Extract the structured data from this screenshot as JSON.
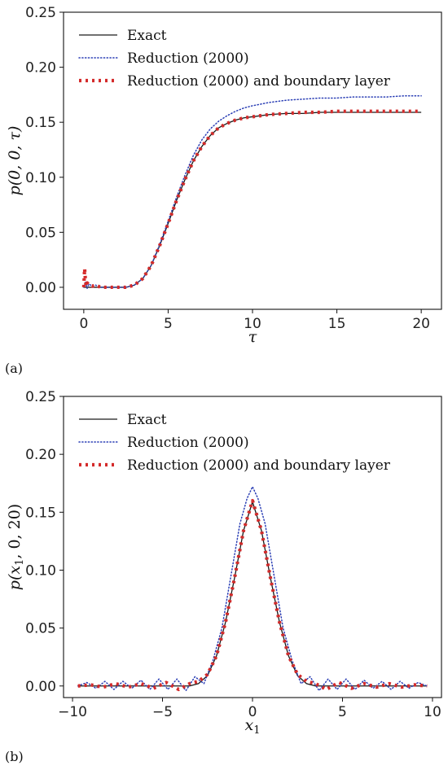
{
  "colors": {
    "exact": "#1a1a1a",
    "reduction": "#2b3fb5",
    "boundary": "#d42a2a"
  },
  "chart_data": [
    {
      "type": "line",
      "panel_label": "(a)",
      "xlabel": "τ",
      "ylabel": "p(0, 0, τ)",
      "xlim": [
        -1.2,
        21.2
      ],
      "ylim": [
        -0.02,
        0.25
      ],
      "xticks": [
        "0",
        "5",
        "10",
        "15",
        "20"
      ],
      "xtick_values": [
        0,
        5,
        10,
        15,
        20
      ],
      "yticks": [
        "0.00",
        "0.05",
        "0.10",
        "0.15",
        "0.20",
        "0.25"
      ],
      "ytick_values": [
        0.0,
        0.05,
        0.1,
        0.15,
        0.2,
        0.25
      ],
      "legend_position": "top-left",
      "series": [
        {
          "name": "Exact",
          "style": "solid",
          "x": [
            0,
            0.5,
            1,
            1.5,
            2,
            2.5,
            3,
            3.5,
            4,
            4.5,
            5,
            5.5,
            6,
            6.5,
            7,
            7.5,
            8,
            8.5,
            9,
            9.5,
            10,
            11,
            12,
            13,
            14,
            15,
            16,
            17,
            18,
            19,
            20
          ],
          "y": [
            0.0,
            0.0,
            0.0,
            0.0,
            0.0,
            0.0,
            0.002,
            0.008,
            0.02,
            0.038,
            0.058,
            0.079,
            0.098,
            0.115,
            0.128,
            0.138,
            0.145,
            0.149,
            0.152,
            0.154,
            0.155,
            0.157,
            0.158,
            0.158,
            0.159,
            0.159,
            0.159,
            0.159,
            0.159,
            0.159,
            0.159
          ]
        },
        {
          "name": "Reduction (2000)",
          "style": "dotted",
          "x": [
            0,
            0.1,
            0.2,
            0.3,
            0.5,
            0.7,
            1,
            1.5,
            2,
            2.5,
            3,
            3.5,
            4,
            4.5,
            5,
            5.5,
            6,
            6.5,
            7,
            7.5,
            8,
            8.5,
            9,
            9.5,
            10,
            11,
            12,
            13,
            14,
            15,
            16,
            17,
            18,
            19,
            20
          ],
          "y": [
            0.0,
            0.005,
            -0.001,
            0.003,
            0.001,
            0.002,
            0.0,
            0.0,
            0.0,
            0.0,
            0.002,
            0.008,
            0.02,
            0.039,
            0.06,
            0.082,
            0.102,
            0.12,
            0.134,
            0.144,
            0.151,
            0.156,
            0.16,
            0.163,
            0.165,
            0.168,
            0.17,
            0.171,
            0.172,
            0.172,
            0.173,
            0.173,
            0.173,
            0.174,
            0.174
          ]
        },
        {
          "name": "Reduction (2000) and boundary layer",
          "style": "dashed",
          "x": [
            0,
            0.05,
            0.1,
            0.15,
            0.2,
            0.3,
            0.5,
            0.7,
            1,
            1.5,
            2,
            2.5,
            3,
            3.5,
            4,
            4.5,
            5,
            5.5,
            6,
            6.5,
            7,
            7.5,
            8,
            8.5,
            9,
            9.5,
            10,
            11,
            12,
            13,
            14,
            15,
            16,
            17,
            18,
            19,
            20
          ],
          "y": [
            0.0,
            0.017,
            0.006,
            0.001,
            0.004,
            0.002,
            0.001,
            0.002,
            0.0,
            0.0,
            0.0,
            0.0,
            0.002,
            0.008,
            0.02,
            0.038,
            0.058,
            0.079,
            0.098,
            0.115,
            0.128,
            0.138,
            0.145,
            0.149,
            0.152,
            0.154,
            0.155,
            0.157,
            0.158,
            0.159,
            0.159,
            0.16,
            0.16,
            0.16,
            0.16,
            0.16,
            0.16
          ]
        }
      ]
    },
    {
      "type": "line",
      "panel_label": "(b)",
      "xlabel": "x1",
      "ylabel": "p(x1, 0, 20)",
      "xlim": [
        -10.5,
        10.5
      ],
      "ylim": [
        -0.01,
        0.25
      ],
      "xticks": [
        "−10",
        "−5",
        "0",
        "5",
        "10"
      ],
      "xtick_values": [
        -10,
        -5,
        0,
        5,
        10
      ],
      "yticks": [
        "0.00",
        "0.05",
        "0.10",
        "0.15",
        "0.20",
        "0.25"
      ],
      "ytick_values": [
        0.0,
        0.05,
        0.1,
        0.15,
        0.2,
        0.25
      ],
      "legend_position": "top-left",
      "series": [
        {
          "name": "Exact",
          "style": "solid",
          "x": [
            -9.7,
            -9,
            -8,
            -7,
            -6,
            -5,
            -4,
            -3.5,
            -3,
            -2.5,
            -2,
            -1.5,
            -1,
            -0.5,
            0,
            0.5,
            1,
            1.5,
            2,
            2.5,
            3,
            3.5,
            4,
            5,
            6,
            7,
            8,
            9,
            9.7
          ],
          "y": [
            0.0,
            0.0,
            0.0,
            0.0,
            0.0,
            0.0,
            0.0,
            0.0,
            0.002,
            0.009,
            0.026,
            0.055,
            0.093,
            0.134,
            0.159,
            0.134,
            0.093,
            0.055,
            0.026,
            0.009,
            0.002,
            0.0,
            0.0,
            0.0,
            0.0,
            0.0,
            0.0,
            0.0,
            0.0
          ]
        },
        {
          "name": "Reduction (2000)",
          "style": "dotted",
          "x": [
            -9.7,
            -9.2,
            -8.7,
            -8.2,
            -7.7,
            -7.2,
            -6.7,
            -6.2,
            -5.7,
            -5.2,
            -4.7,
            -4.2,
            -3.7,
            -3.2,
            -2.7,
            -2.2,
            -1.7,
            -1.2,
            -0.7,
            -0.3,
            0,
            0.3,
            0.7,
            1.2,
            1.7,
            2.2,
            2.7,
            3.2,
            3.7,
            4.2,
            4.7,
            5.2,
            5.7,
            6.2,
            6.7,
            7.2,
            7.7,
            8.2,
            8.7,
            9.2,
            9.7
          ],
          "y": [
            0.0,
            0.003,
            -0.002,
            0.004,
            -0.003,
            0.004,
            -0.002,
            0.005,
            -0.003,
            0.006,
            -0.003,
            0.006,
            -0.004,
            0.008,
            0.002,
            0.022,
            0.05,
            0.095,
            0.14,
            0.162,
            0.172,
            0.162,
            0.14,
            0.095,
            0.05,
            0.022,
            0.002,
            0.008,
            -0.004,
            0.006,
            -0.003,
            0.006,
            -0.003,
            0.005,
            -0.002,
            0.004,
            -0.003,
            0.004,
            -0.002,
            0.003,
            0.0
          ]
        },
        {
          "name": "Reduction (2000) and boundary layer",
          "style": "dashed",
          "x": [
            -9.7,
            -9,
            -8.3,
            -7.6,
            -6.9,
            -6.2,
            -5.5,
            -4.8,
            -4.1,
            -3.5,
            -3,
            -2.5,
            -2,
            -1.5,
            -1,
            -0.5,
            0,
            0.5,
            1,
            1.5,
            2,
            2.5,
            3,
            3.5,
            4.1,
            4.8,
            5.5,
            6.2,
            6.9,
            7.6,
            8.3,
            9,
            9.7
          ],
          "y": [
            0.0,
            0.001,
            -0.001,
            0.002,
            -0.001,
            0.002,
            -0.002,
            0.003,
            -0.003,
            0.002,
            0.004,
            0.01,
            0.026,
            0.055,
            0.093,
            0.134,
            0.16,
            0.134,
            0.093,
            0.055,
            0.026,
            0.01,
            0.004,
            0.002,
            -0.003,
            0.003,
            -0.002,
            0.002,
            -0.001,
            0.002,
            -0.001,
            0.001,
            0.0
          ]
        }
      ]
    }
  ]
}
